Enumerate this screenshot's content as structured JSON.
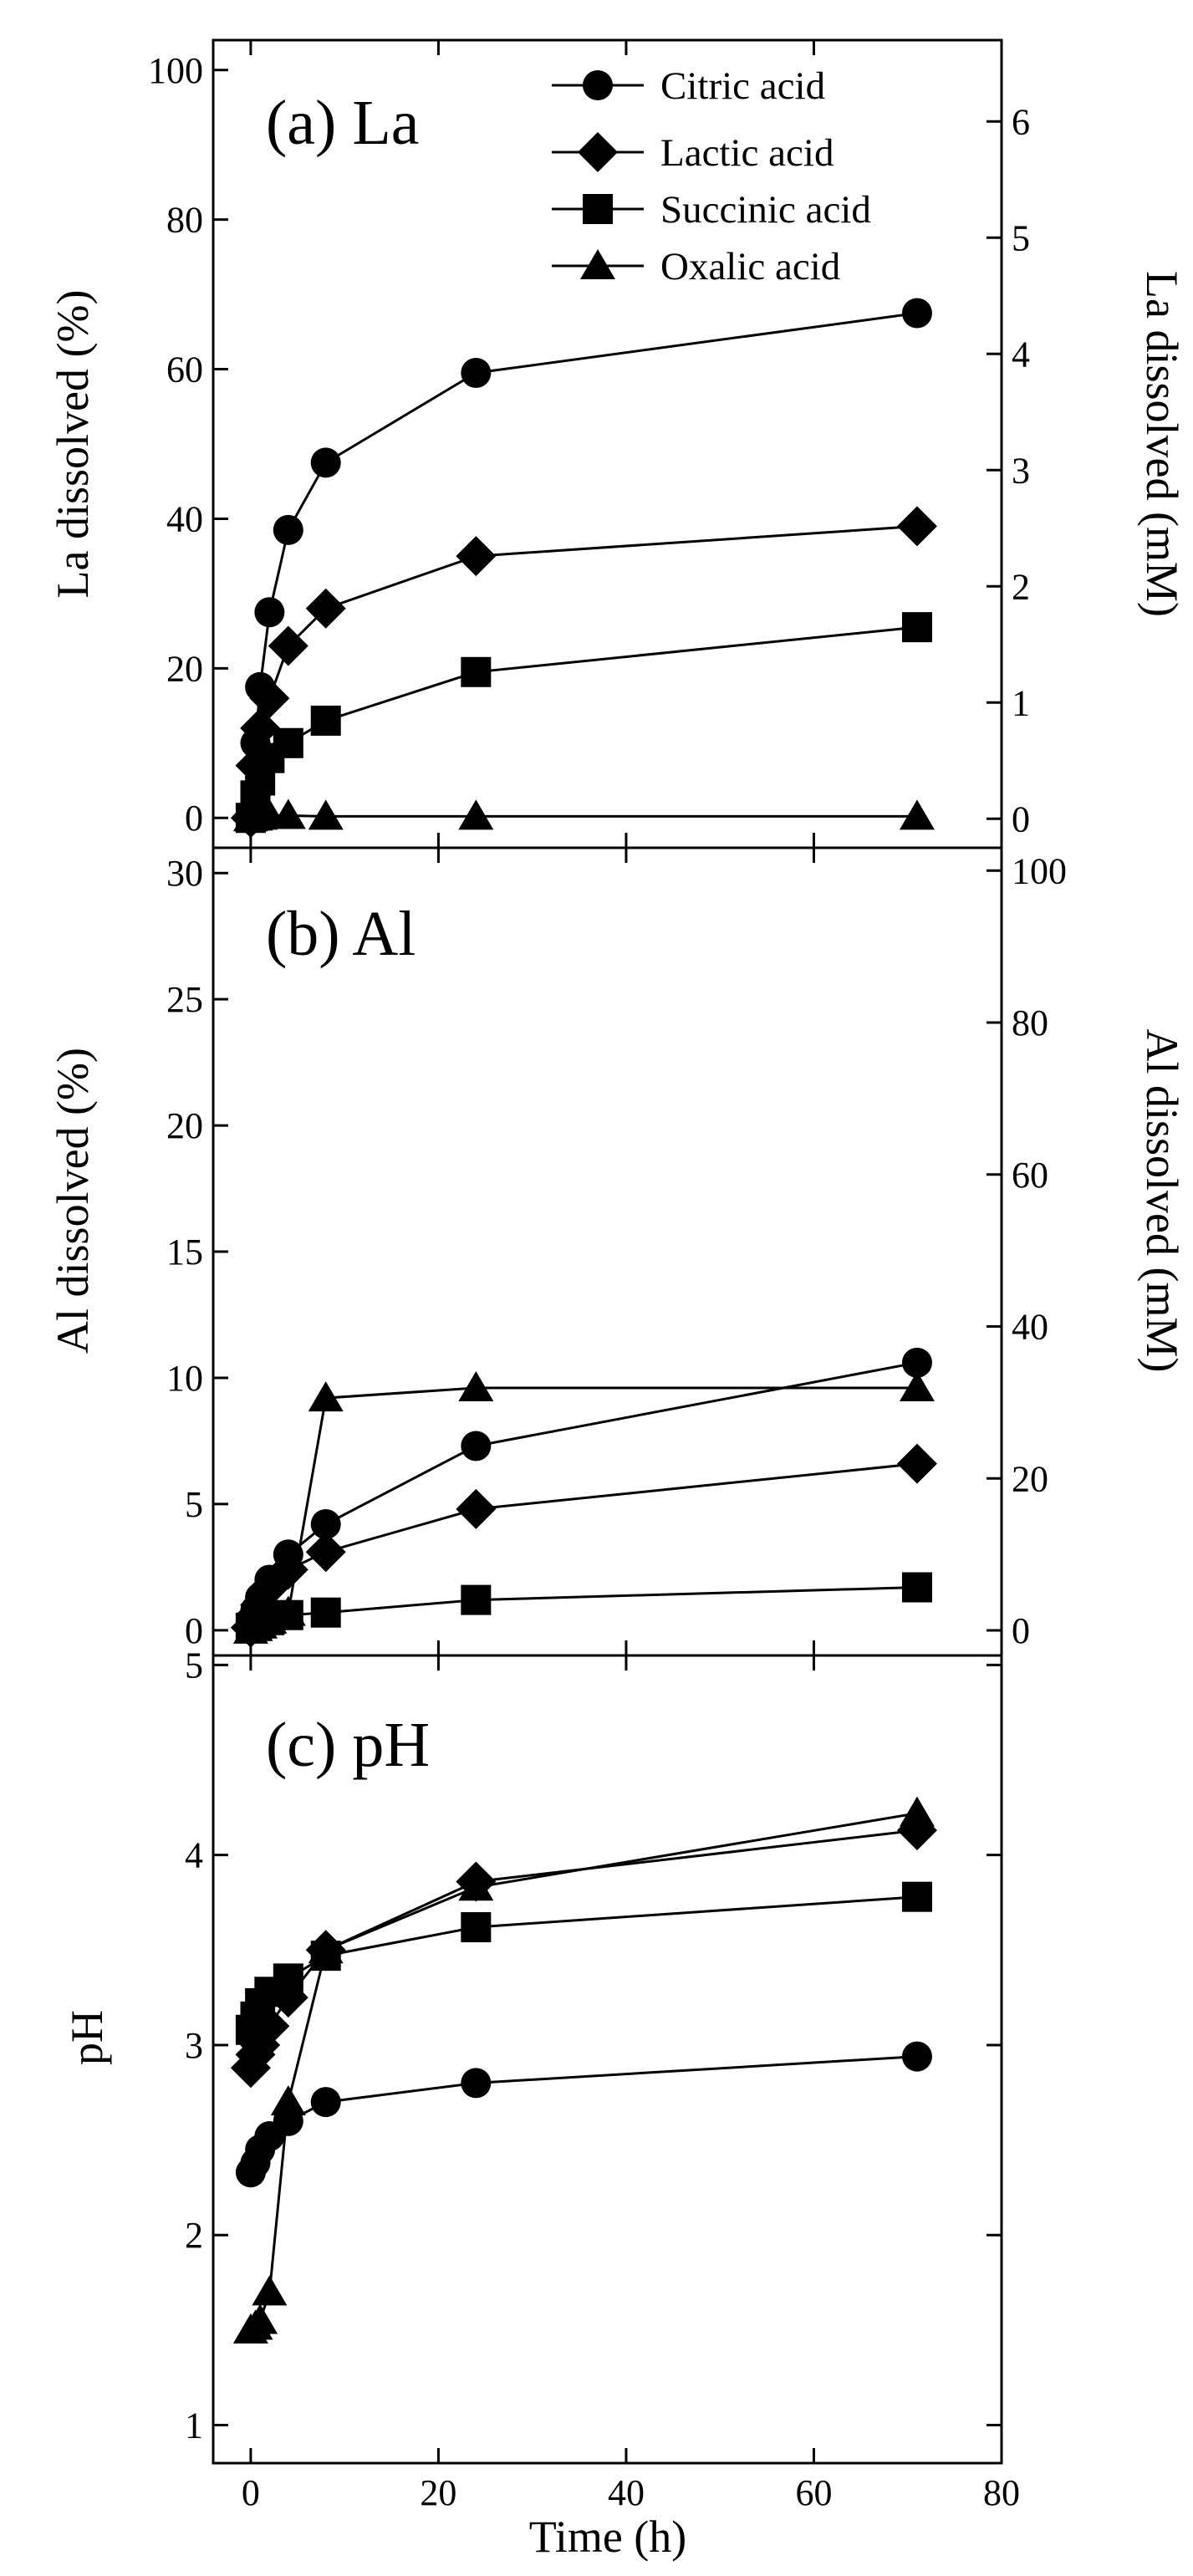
{
  "chart_data": [
    {
      "type": "line",
      "panel_label": "(a) La",
      "xlabel": "",
      "ylabel": "La dissolved (%)",
      "ylabel_right": "La dissolved (mM)",
      "xlim": [
        -4,
        80
      ],
      "ylim": [
        -4,
        104
      ],
      "ylim_right": [
        -0.25,
        6.7
      ],
      "yticks": [
        0,
        20,
        40,
        60,
        80,
        100
      ],
      "yticks_right": [
        0,
        1,
        2,
        3,
        4,
        5,
        6
      ],
      "legend": {
        "position": "top-right",
        "entries": [
          "Citric acid",
          "Lactic acid",
          "Succinic acid",
          "Oxalic acid"
        ]
      },
      "series": [
        {
          "name": "Citric acid",
          "marker": "circle",
          "x": [
            0,
            0.5,
            1,
            2,
            4,
            8,
            24,
            71
          ],
          "y": [
            0,
            10,
            17.5,
            27.5,
            38.5,
            47.5,
            59.5,
            67.5
          ]
        },
        {
          "name": "Lactic acid",
          "marker": "diamond",
          "x": [
            0,
            0.5,
            1,
            2,
            4,
            8,
            24,
            71
          ],
          "y": [
            0,
            7,
            12,
            16,
            23,
            28,
            35,
            39
          ]
        },
        {
          "name": "Succinic acid",
          "marker": "square",
          "x": [
            0,
            0.5,
            1,
            2,
            4,
            8,
            24,
            71
          ],
          "y": [
            0,
            3,
            5,
            8,
            10,
            13,
            19.5,
            25.5
          ]
        },
        {
          "name": "Oxalic acid",
          "marker": "triangle",
          "x": [
            0,
            0.5,
            1,
            2,
            4,
            8,
            24,
            71
          ],
          "y": [
            0,
            0.1,
            0.2,
            0.3,
            0.3,
            0.2,
            0.2,
            0.2
          ]
        }
      ]
    },
    {
      "type": "line",
      "panel_label": "(b) Al",
      "xlabel": "",
      "ylabel": "Al dissolved (%)",
      "ylabel_right": "Al dissolved (mM)",
      "xlim": [
        -4,
        80
      ],
      "ylim": [
        -1,
        31
      ],
      "ylim_right": [
        -3.3,
        103
      ],
      "yticks": [
        0,
        5,
        10,
        15,
        20,
        25,
        30
      ],
      "yticks_right": [
        0,
        20,
        40,
        60,
        80,
        100
      ],
      "series": [
        {
          "name": "Citric acid",
          "marker": "circle",
          "x": [
            0,
            0.5,
            1,
            2,
            4,
            8,
            24,
            71
          ],
          "y": [
            0.3,
            0.8,
            1.3,
            2,
            3,
            4.2,
            7.3,
            10.6
          ]
        },
        {
          "name": "Lactic acid",
          "marker": "diamond",
          "x": [
            0,
            0.5,
            1,
            2,
            4,
            8,
            24,
            71
          ],
          "y": [
            0.1,
            0.6,
            1,
            1.7,
            2.4,
            3.1,
            4.8,
            6.6
          ]
        },
        {
          "name": "Succinic acid",
          "marker": "square",
          "x": [
            0,
            0.5,
            1,
            2,
            4,
            8,
            24,
            71
          ],
          "y": [
            0.1,
            0.2,
            0.3,
            0.4,
            0.6,
            0.7,
            1.2,
            1.7
          ]
        },
        {
          "name": "Oxalic acid",
          "marker": "triangle",
          "x": [
            0,
            0.5,
            1,
            2,
            4,
            8,
            24,
            71
          ],
          "y": [
            0,
            0.1,
            0.2,
            0.4,
            0.7,
            9.2,
            9.6,
            9.6
          ]
        }
      ]
    },
    {
      "type": "line",
      "panel_label": "(c) pH",
      "xlabel": "Time (h)",
      "ylabel": "pH",
      "xlim": [
        -4,
        80
      ],
      "ylim": [
        0.8,
        5.05
      ],
      "xticks": [
        0,
        20,
        40,
        60,
        80
      ],
      "yticks": [
        1,
        2,
        3,
        4,
        5
      ],
      "series": [
        {
          "name": "Citric acid",
          "marker": "circle",
          "x": [
            0,
            0.5,
            1,
            2,
            4,
            8,
            24,
            71
          ],
          "y": [
            2.33,
            2.38,
            2.45,
            2.52,
            2.6,
            2.7,
            2.8,
            2.94
          ]
        },
        {
          "name": "Lactic acid",
          "marker": "diamond",
          "x": [
            0,
            0.5,
            1,
            2,
            4,
            8,
            24,
            71
          ],
          "y": [
            2.88,
            2.95,
            3.0,
            3.1,
            3.25,
            3.5,
            3.86,
            4.13
          ]
        },
        {
          "name": "Succinic acid",
          "marker": "square",
          "x": [
            0,
            0.5,
            1,
            2,
            4,
            8,
            24,
            71
          ],
          "y": [
            3.08,
            3.15,
            3.22,
            3.28,
            3.35,
            3.47,
            3.62,
            3.78
          ]
        },
        {
          "name": "Oxalic acid",
          "marker": "triangle",
          "x": [
            0,
            0.5,
            1,
            2,
            4,
            8,
            24,
            71
          ],
          "y": [
            1.5,
            1.52,
            1.55,
            1.7,
            2.7,
            3.5,
            3.83,
            4.22
          ]
        }
      ]
    }
  ]
}
